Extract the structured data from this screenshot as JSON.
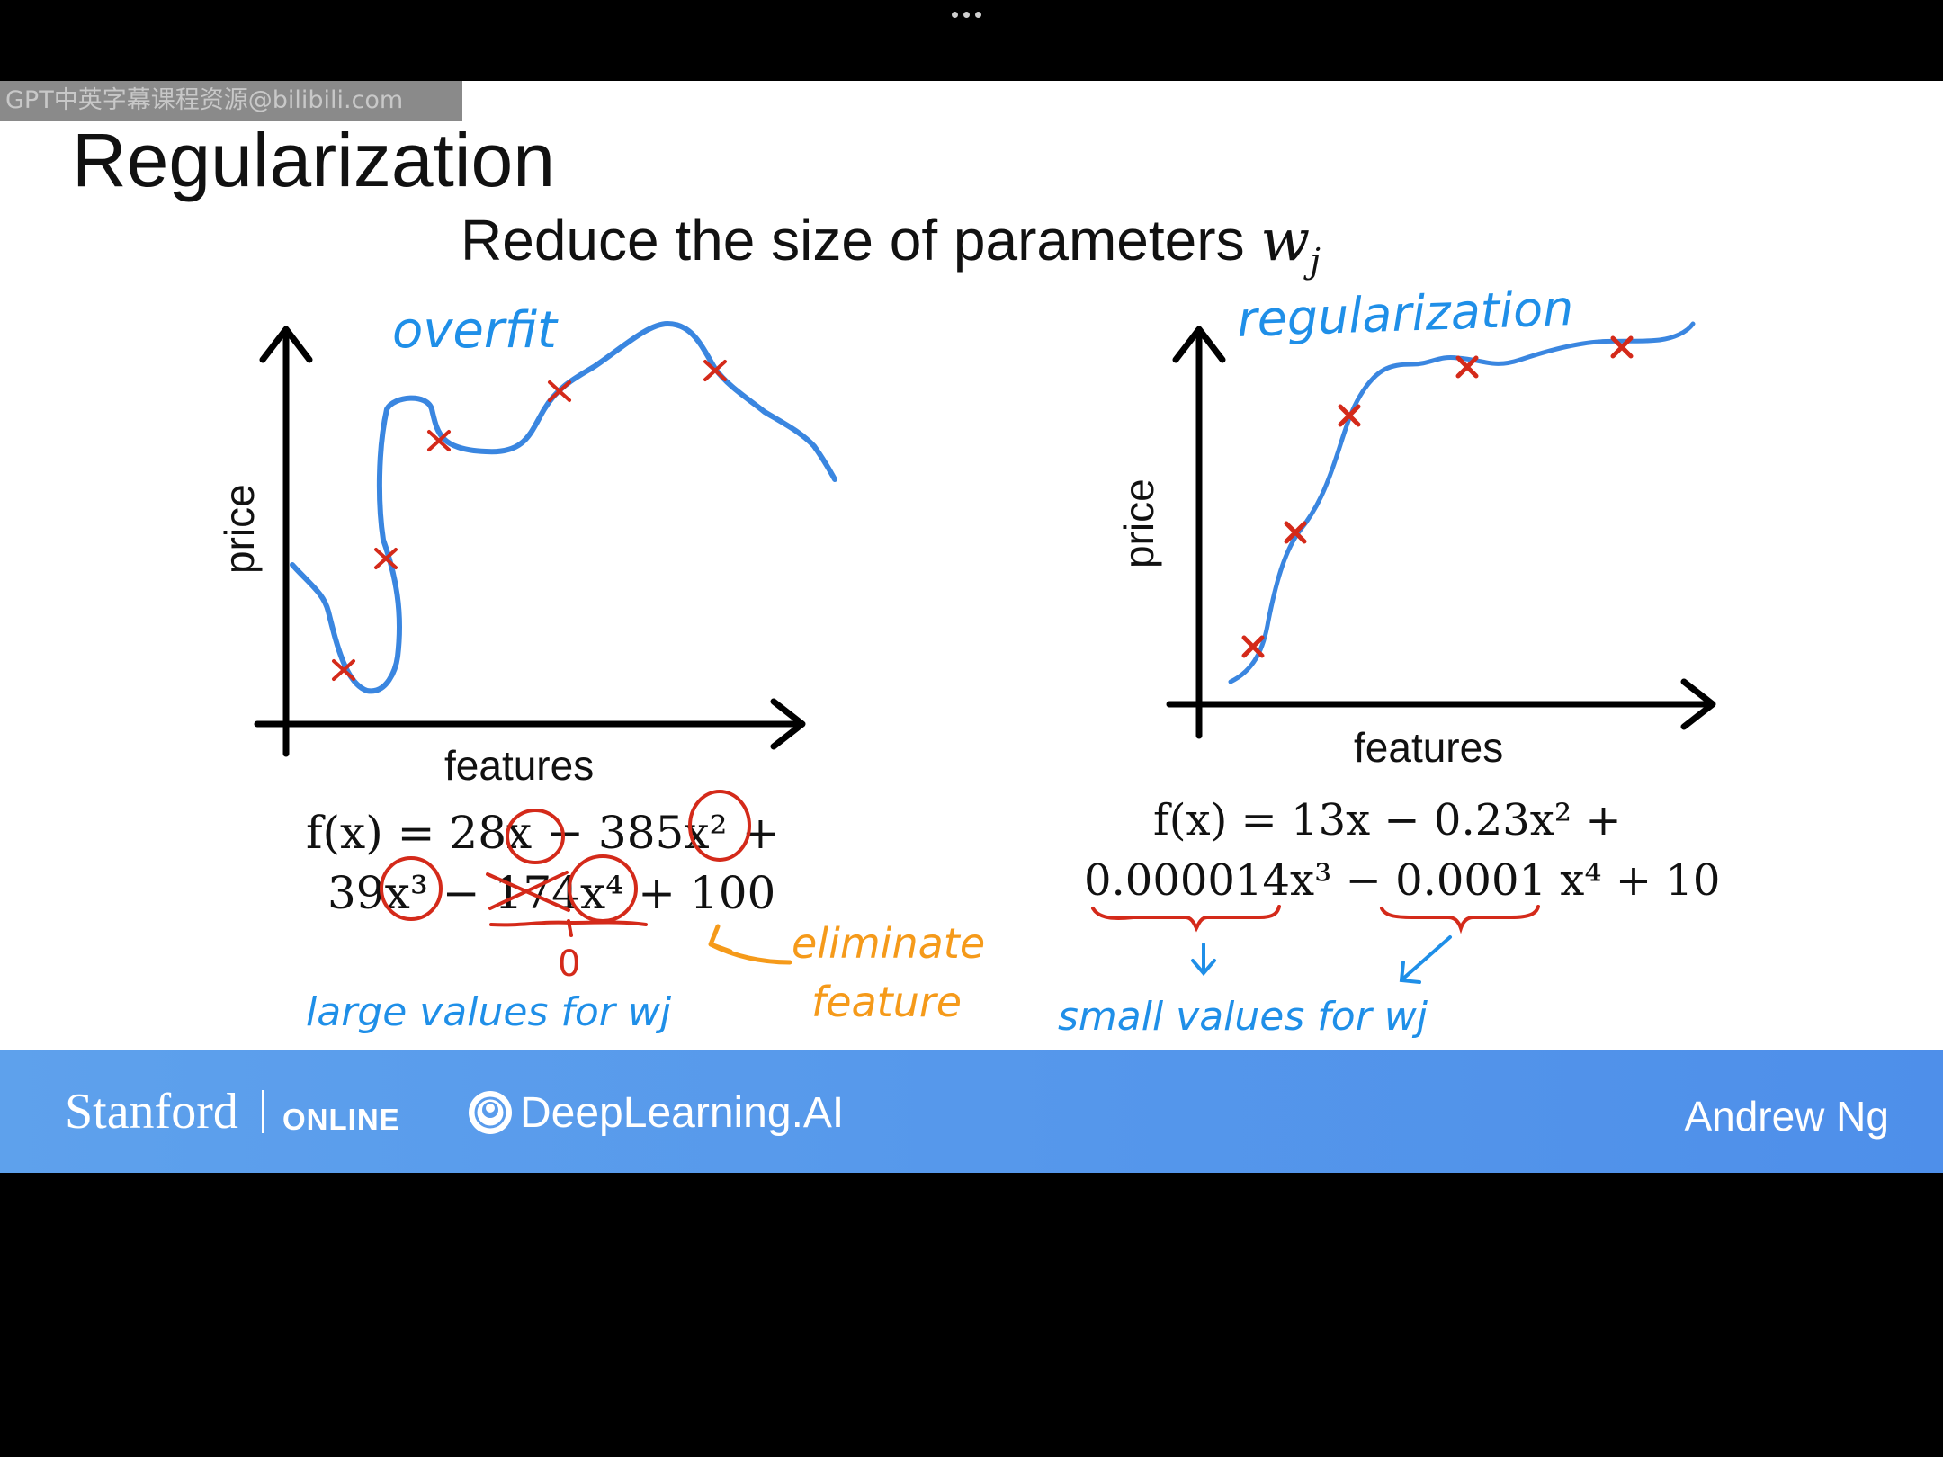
{
  "watermark": "GPT中英字幕课程资源@bilibili.com",
  "title": "Regularization",
  "subtitle": {
    "text": "Reduce the size of parameters",
    "symbol": "w",
    "subscript": "j"
  },
  "left_plot": {
    "annotation": "overfit",
    "y_label": "price",
    "x_label": "features",
    "equation_line1": "f(x) = 28x − 385x² +",
    "equation_line2": "39x³ − 174x⁴ + 100",
    "zero_note": "0",
    "note_large": "large values for wj",
    "note_eliminate_1": "eliminate",
    "note_eliminate_2": "feature"
  },
  "right_plot": {
    "annotation": "regularization",
    "y_label": "price",
    "x_label": "features",
    "equation_line1": "f(x) = 13x − 0.23x² +",
    "equation_line2": "0.000014x³ − 0.0001 x⁴ + 10",
    "note_small": "small values for wj"
  },
  "footer": {
    "stanford": "Stanford",
    "online": "ONLINE",
    "deeplearning": "DeepLearning.AI",
    "author": "Andrew Ng"
  },
  "colors": {
    "pen_blue": "#1f8fe8",
    "curve_blue": "#3a86e0",
    "marker_red": "#d42a1a",
    "pen_orange": "#f59a1a",
    "footer_blue": "#5a9cec"
  }
}
